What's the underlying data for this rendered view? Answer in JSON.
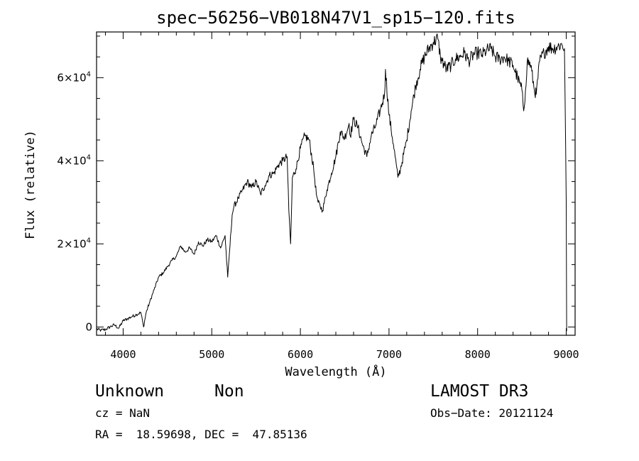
{
  "chart_data": {
    "type": "line",
    "title": "spec−56256−VB018N47V1_sp15−120.fits",
    "xlabel": "Wavelength (Å)",
    "ylabel": "Flux (relative)",
    "xlim": [
      3700,
      9100
    ],
    "ylim": [
      -2000,
      71000
    ],
    "x_ticks": [
      {
        "value": 4000,
        "label": "4000"
      },
      {
        "value": 5000,
        "label": "5000"
      },
      {
        "value": 6000,
        "label": "6000"
      },
      {
        "value": 7000,
        "label": "7000"
      },
      {
        "value": 8000,
        "label": "8000"
      },
      {
        "value": 9000,
        "label": "9000"
      }
    ],
    "y_ticks": [
      {
        "value": 0,
        "mantissa": "0",
        "exponent": ""
      },
      {
        "value": 20000,
        "mantissa": "2×10",
        "exponent": "4"
      },
      {
        "value": 40000,
        "mantissa": "4×10",
        "exponent": "4"
      },
      {
        "value": 60000,
        "mantissa": "6×10",
        "exponent": "4"
      }
    ],
    "series": [
      {
        "name": "flux",
        "x": [
          3700,
          3750,
          3800,
          3850,
          3900,
          3950,
          4000,
          4050,
          4100,
          4150,
          4200,
          4230,
          4260,
          4300,
          4350,
          4400,
          4450,
          4500,
          4550,
          4600,
          4650,
          4700,
          4750,
          4800,
          4850,
          4900,
          4950,
          5000,
          5050,
          5100,
          5150,
          5180,
          5200,
          5230,
          5250,
          5300,
          5350,
          5400,
          5450,
          5500,
          5550,
          5600,
          5650,
          5700,
          5750,
          5800,
          5850,
          5870,
          5890,
          5910,
          5950,
          6000,
          6050,
          6100,
          6150,
          6180,
          6200,
          6250,
          6300,
          6350,
          6400,
          6450,
          6500,
          6550,
          6563,
          6600,
          6650,
          6700,
          6750,
          6800,
          6850,
          6900,
          6950,
          6960,
          7000,
          7050,
          7100,
          7130,
          7200,
          7250,
          7300,
          7350,
          7400,
          7450,
          7500,
          7550,
          7580,
          7600,
          7650,
          7700,
          7750,
          7800,
          7850,
          7900,
          7950,
          8000,
          8050,
          8100,
          8150,
          8200,
          8250,
          8300,
          8350,
          8400,
          8450,
          8500,
          8520,
          8540,
          8560,
          8600,
          8640,
          8662,
          8700,
          8750,
          8800,
          8850,
          8900,
          8950,
          8980,
          9000,
          9005
        ],
        "y": [
          -500,
          -800,
          -600,
          0,
          500,
          -300,
          1500,
          2000,
          2500,
          3000,
          3500,
          0,
          3500,
          6000,
          9000,
          12000,
          13000,
          14500,
          16000,
          17000,
          19500,
          18000,
          19000,
          17500,
          20500,
          19500,
          21000,
          20500,
          22000,
          19000,
          22000,
          12000,
          18000,
          27000,
          29000,
          31000,
          33000,
          35000,
          33500,
          35000,
          32000,
          34000,
          36500,
          37000,
          39000,
          40000,
          41000,
          28000,
          20000,
          36000,
          38000,
          43000,
          46000,
          45000,
          38000,
          32000,
          30000,
          28000,
          33000,
          37000,
          41000,
          47000,
          45500,
          49000,
          46000,
          50000,
          48000,
          44000,
          41000,
          46000,
          48500,
          52000,
          56000,
          62000,
          51000,
          44000,
          36000,
          38000,
          45000,
          52000,
          58000,
          62000,
          65000,
          67000,
          68500,
          69500,
          65000,
          64000,
          62000,
          63000,
          64500,
          65000,
          66000,
          64000,
          65500,
          66000,
          65500,
          66500,
          67000,
          65000,
          64500,
          65000,
          64000,
          63000,
          60000,
          57000,
          52000,
          57000,
          64000,
          63000,
          57000,
          56000,
          64000,
          66000,
          67500,
          67000,
          67500,
          68000,
          67000,
          30000,
          -1000
        ]
      }
    ]
  },
  "info": {
    "class_text": "Unknown",
    "subclass_text": "Non",
    "survey_text": "LAMOST DR3",
    "cz_text": "cz = NaN",
    "obsdate_text": "Obs−Date: 20121124",
    "radec_text": "RA =  18.59698, DEC =  47.85136"
  }
}
